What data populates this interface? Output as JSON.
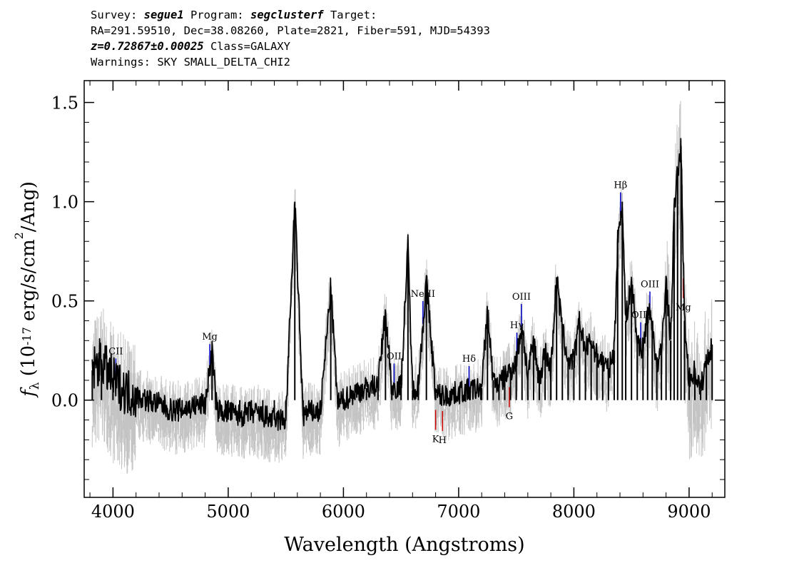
{
  "header": {
    "survey_label": "Survey: ",
    "survey": "segue1",
    "program_label": " Program: ",
    "program": "segclusterf",
    "target_label": " Target:",
    "line2": "RA=291.59510, Dec=38.08260, Plate=2821, Fiber=591, MJD=54393",
    "redshift": "z=0.72867±0.00025",
    "class_text": " Class=GALAXY",
    "warnings": "Warnings: SKY SMALL_DELTA_CHI2"
  },
  "chart_data": {
    "type": "line",
    "xlabel": "Wavelength (Angstroms)",
    "ylabel": "f_λ (10^-17 erg/s/cm^2/Ang)",
    "xlim": [
      3750,
      9310
    ],
    "ylim": [
      -0.49,
      1.61
    ],
    "xticks": [
      4000,
      5000,
      6000,
      7000,
      8000,
      9000
    ],
    "yticks": [
      0.0,
      0.5,
      1.0,
      1.5
    ],
    "tick_labels_x": [
      "4000",
      "5000",
      "6000",
      "7000",
      "8000",
      "9000"
    ],
    "tick_labels_y": [
      "0.0",
      "0.5",
      "1.0",
      "1.5"
    ],
    "colors": {
      "flux": "#000000",
      "error_band": "#c4c4c4",
      "emission": "#0000c8",
      "absorption": "#d00000"
    },
    "series": [
      {
        "style": "black",
        "x": [
          3820,
          3900,
          4000,
          4100,
          4200,
          4300,
          4400,
          4500,
          4600,
          4700,
          4800,
          4860,
          4900,
          5000,
          5100,
          5200,
          5300,
          5400,
          5500,
          5578,
          5650,
          5700,
          5800,
          5890,
          5950,
          6000,
          6100,
          6200,
          6300,
          6365,
          6420,
          6500,
          6560,
          6600,
          6650,
          6720,
          6800,
          6900,
          7000,
          7100,
          7200,
          7250,
          7300,
          7350,
          7400,
          7450,
          7500,
          7550,
          7600,
          7650,
          7700,
          7750,
          7800,
          7850,
          7900,
          7950,
          8000,
          8050,
          8100,
          8150,
          8200,
          8250,
          8300,
          8350,
          8380,
          8420,
          8450,
          8500,
          8550,
          8600,
          8640,
          8680,
          8720,
          8760,
          8800,
          8840,
          8870,
          8900,
          8930,
          8960,
          9000,
          9050,
          9100,
          9150,
          9200
        ],
        "y": [
          0.15,
          0.2,
          0.1,
          0.05,
          0.02,
          0.0,
          -0.02,
          -0.05,
          -0.05,
          -0.03,
          -0.02,
          0.25,
          -0.05,
          -0.06,
          -0.08,
          -0.06,
          -0.08,
          -0.1,
          -0.1,
          1.0,
          -0.08,
          -0.06,
          -0.06,
          0.57,
          -0.02,
          0.0,
          0.04,
          0.06,
          0.08,
          0.44,
          0.06,
          0.07,
          0.78,
          0.05,
          0.08,
          0.6,
          0.03,
          0.02,
          0.04,
          0.05,
          0.06,
          0.45,
          0.1,
          0.08,
          0.12,
          0.15,
          0.2,
          0.38,
          0.12,
          0.3,
          0.1,
          0.25,
          0.15,
          0.62,
          0.35,
          0.2,
          0.2,
          0.4,
          0.25,
          0.3,
          0.22,
          0.2,
          0.15,
          0.25,
          0.8,
          1.0,
          0.4,
          0.6,
          0.3,
          0.25,
          0.45,
          0.4,
          0.15,
          0.25,
          0.6,
          0.3,
          0.95,
          1.15,
          1.28,
          0.4,
          0.1,
          0.15,
          0.05,
          0.2,
          0.28
        ]
      }
    ],
    "emission_lines": [
      {
        "label": "CII",
        "wave": 4025
      },
      {
        "label": "Mg",
        "wave": 4840
      },
      {
        "label": "OII",
        "wave": 6440
      },
      {
        "label": "NeIII",
        "wave": 6690
      },
      {
        "label": "Hδ",
        "wave": 7090
      },
      {
        "label": "Hγ",
        "wave": 7505
      },
      {
        "label": "OIII",
        "wave": 7545
      },
      {
        "label": "Hβ",
        "wave": 8405
      },
      {
        "label": "OIII",
        "wave": 8580
      },
      {
        "label": "OIII",
        "wave": 8660
      }
    ],
    "absorption_lines": [
      {
        "label": "K",
        "wave": 6800
      },
      {
        "label": "H",
        "wave": 6860
      },
      {
        "label": "G",
        "wave": 7440
      },
      {
        "label": "Mg",
        "wave": 8950
      }
    ]
  }
}
